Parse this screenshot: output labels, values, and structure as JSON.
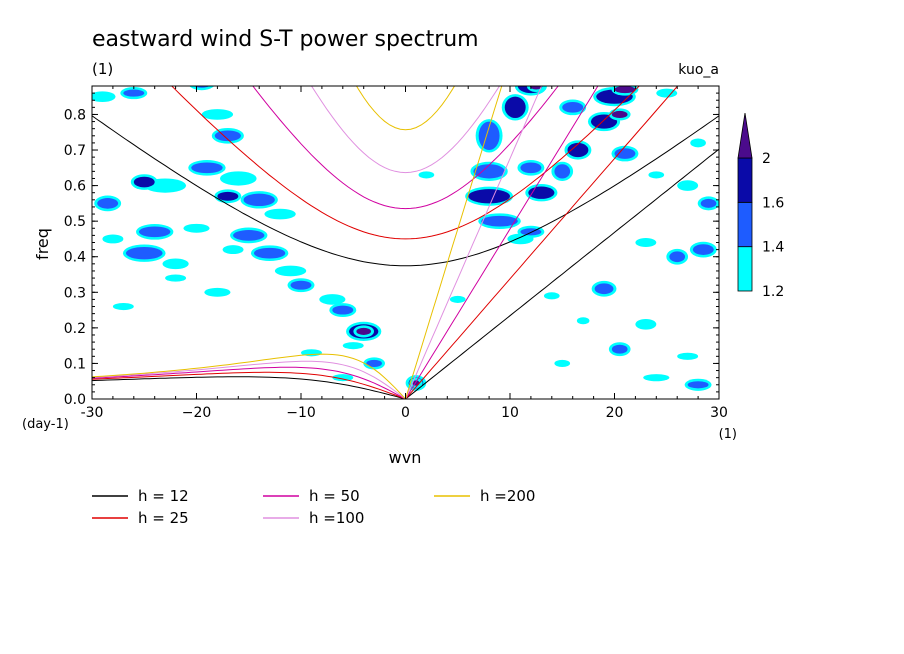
{
  "chart_data": {
    "type": "heatmap",
    "title": "eastward wind S-T power spectrum",
    "subtitle": "(1)",
    "tag": "kuo_a",
    "xlabel": "wvn",
    "ylabel": "freq",
    "x_unit": "(1)",
    "y_unit": "(day-1)",
    "xlim": [
      -30,
      30
    ],
    "ylim": [
      0,
      0.88
    ],
    "x_ticks": [
      -30,
      -20,
      -10,
      0,
      10,
      20,
      30
    ],
    "x_tick_labels": [
      "-30",
      "−20",
      "−10",
      "0",
      "10",
      "20",
      "30"
    ],
    "y_ticks": [
      0.0,
      0.1,
      0.2,
      0.3,
      0.4,
      0.5,
      0.6,
      0.7,
      0.8
    ],
    "y_tick_labels": [
      "0.0",
      "0.1",
      "0.2",
      "0.3",
      "0.4",
      "0.5",
      "0.6",
      "0.7",
      "0.8"
    ],
    "colorbar": {
      "levels": [
        1.2,
        1.4,
        1.6,
        2
      ],
      "labels": [
        "1.2",
        "1.4",
        "1.6",
        "2"
      ],
      "colors": [
        "#00ffff",
        "#1e5cff",
        "#0a0aa8",
        "#4b0b8c"
      ]
    },
    "contour_blobs": [
      {
        "x": -29,
        "y": 0.85,
        "w": 2.5,
        "h": 0.03,
        "level": 0
      },
      {
        "x": -26,
        "y": 0.86,
        "w": 2.0,
        "h": 0.02,
        "level": 1
      },
      {
        "x": -19.5,
        "y": 0.9,
        "w": 2.5,
        "h": 0.05,
        "level": 1
      },
      {
        "x": -23,
        "y": 0.6,
        "w": 4.0,
        "h": 0.04,
        "level": 0
      },
      {
        "x": -25,
        "y": 0.61,
        "w": 2.0,
        "h": 0.03,
        "level": 2
      },
      {
        "x": -18,
        "y": 0.8,
        "w": 3.0,
        "h": 0.03,
        "level": 0
      },
      {
        "x": -17,
        "y": 0.74,
        "w": 2.5,
        "h": 0.03,
        "level": 1
      },
      {
        "x": -19,
        "y": 0.65,
        "w": 3.0,
        "h": 0.03,
        "level": 1
      },
      {
        "x": -16,
        "y": 0.62,
        "w": 3.5,
        "h": 0.04,
        "level": 0
      },
      {
        "x": -17,
        "y": 0.57,
        "w": 2.0,
        "h": 0.025,
        "level": 2
      },
      {
        "x": -14,
        "y": 0.56,
        "w": 3.0,
        "h": 0.035,
        "level": 1
      },
      {
        "x": -12,
        "y": 0.52,
        "w": 3.0,
        "h": 0.03,
        "level": 0
      },
      {
        "x": -28.5,
        "y": 0.55,
        "w": 2.0,
        "h": 0.03,
        "level": 1
      },
      {
        "x": -28,
        "y": 0.45,
        "w": 2.0,
        "h": 0.025,
        "level": 0
      },
      {
        "x": -24,
        "y": 0.47,
        "w": 3.0,
        "h": 0.03,
        "level": 1
      },
      {
        "x": -20,
        "y": 0.48,
        "w": 2.5,
        "h": 0.025,
        "level": 0
      },
      {
        "x": -15,
        "y": 0.46,
        "w": 3.0,
        "h": 0.03,
        "level": 1
      },
      {
        "x": -16.5,
        "y": 0.42,
        "w": 2.0,
        "h": 0.025,
        "level": 0
      },
      {
        "x": -25,
        "y": 0.41,
        "w": 3.5,
        "h": 0.035,
        "level": 1
      },
      {
        "x": -22,
        "y": 0.38,
        "w": 2.5,
        "h": 0.03,
        "level": 0
      },
      {
        "x": -13,
        "y": 0.41,
        "w": 3.0,
        "h": 0.03,
        "level": 1
      },
      {
        "x": -11,
        "y": 0.36,
        "w": 3.0,
        "h": 0.03,
        "level": 0
      },
      {
        "x": -10,
        "y": 0.32,
        "w": 2.0,
        "h": 0.025,
        "level": 1
      },
      {
        "x": -22,
        "y": 0.34,
        "w": 2.0,
        "h": 0.02,
        "level": 0
      },
      {
        "x": -18,
        "y": 0.3,
        "w": 2.5,
        "h": 0.025,
        "level": 0
      },
      {
        "x": -27,
        "y": 0.26,
        "w": 2.0,
        "h": 0.02,
        "level": 0
      },
      {
        "x": -7,
        "y": 0.28,
        "w": 2.5,
        "h": 0.03,
        "level": 0
      },
      {
        "x": -6,
        "y": 0.25,
        "w": 2.0,
        "h": 0.025,
        "level": 1
      },
      {
        "x": -4,
        "y": 0.19,
        "w": 2.8,
        "h": 0.04,
        "level": 2
      },
      {
        "x": -4,
        "y": 0.19,
        "w": 1.4,
        "h": 0.02,
        "level": 3
      },
      {
        "x": -5,
        "y": 0.15,
        "w": 2.0,
        "h": 0.02,
        "level": 0
      },
      {
        "x": -3,
        "y": 0.1,
        "w": 1.5,
        "h": 0.02,
        "level": 1
      },
      {
        "x": -9,
        "y": 0.13,
        "w": 2.0,
        "h": 0.02,
        "level": 0
      },
      {
        "x": 1,
        "y": 0.045,
        "w": 1.4,
        "h": 0.03,
        "level": 2
      },
      {
        "x": 1,
        "y": 0.045,
        "w": 0.7,
        "h": 0.015,
        "level": 3
      },
      {
        "x": -6,
        "y": 0.06,
        "w": 2.0,
        "h": 0.02,
        "level": 0
      },
      {
        "x": 8,
        "y": 0.74,
        "w": 2.0,
        "h": 0.08,
        "level": 1
      },
      {
        "x": 10.5,
        "y": 0.82,
        "w": 2.0,
        "h": 0.06,
        "level": 2
      },
      {
        "x": 12,
        "y": 0.88,
        "w": 2.5,
        "h": 0.04,
        "level": 2
      },
      {
        "x": 12.5,
        "y": 0.88,
        "w": 1.2,
        "h": 0.02,
        "level": 3
      },
      {
        "x": 8,
        "y": 0.64,
        "w": 3.0,
        "h": 0.04,
        "level": 1
      },
      {
        "x": 8,
        "y": 0.57,
        "w": 4.0,
        "h": 0.04,
        "level": 2
      },
      {
        "x": 12,
        "y": 0.65,
        "w": 2.0,
        "h": 0.03,
        "level": 1
      },
      {
        "x": 13,
        "y": 0.58,
        "w": 2.5,
        "h": 0.035,
        "level": 2
      },
      {
        "x": 9,
        "y": 0.5,
        "w": 3.5,
        "h": 0.03,
        "level": 1
      },
      {
        "x": 11,
        "y": 0.45,
        "w": 2.5,
        "h": 0.03,
        "level": 0
      },
      {
        "x": 12,
        "y": 0.47,
        "w": 2.0,
        "h": 0.02,
        "level": 1
      },
      {
        "x": 15,
        "y": 0.64,
        "w": 1.5,
        "h": 0.04,
        "level": 1
      },
      {
        "x": 16.5,
        "y": 0.7,
        "w": 2.0,
        "h": 0.04,
        "level": 2
      },
      {
        "x": 19,
        "y": 0.78,
        "w": 2.5,
        "h": 0.04,
        "level": 2
      },
      {
        "x": 20,
        "y": 0.85,
        "w": 3.5,
        "h": 0.04,
        "level": 2
      },
      {
        "x": 21,
        "y": 0.87,
        "w": 2.0,
        "h": 0.02,
        "level": 3
      },
      {
        "x": 20.5,
        "y": 0.8,
        "w": 1.5,
        "h": 0.02,
        "level": 3
      },
      {
        "x": 16,
        "y": 0.82,
        "w": 2.0,
        "h": 0.03,
        "level": 1
      },
      {
        "x": 21,
        "y": 0.69,
        "w": 2.0,
        "h": 0.03,
        "level": 1
      },
      {
        "x": 25,
        "y": 0.86,
        "w": 2.0,
        "h": 0.025,
        "level": 0
      },
      {
        "x": 19,
        "y": 0.31,
        "w": 1.8,
        "h": 0.03,
        "level": 1
      },
      {
        "x": 23,
        "y": 0.44,
        "w": 2.0,
        "h": 0.025,
        "level": 0
      },
      {
        "x": 26,
        "y": 0.4,
        "w": 1.5,
        "h": 0.03,
        "level": 1
      },
      {
        "x": 28.5,
        "y": 0.42,
        "w": 2.0,
        "h": 0.03,
        "level": 1
      },
      {
        "x": 27,
        "y": 0.6,
        "w": 2.0,
        "h": 0.03,
        "level": 0
      },
      {
        "x": 29,
        "y": 0.55,
        "w": 1.5,
        "h": 0.025,
        "level": 1
      },
      {
        "x": 24,
        "y": 0.63,
        "w": 1.5,
        "h": 0.02,
        "level": 0
      },
      {
        "x": 14,
        "y": 0.29,
        "w": 1.5,
        "h": 0.02,
        "level": 0
      },
      {
        "x": 23,
        "y": 0.21,
        "w": 2.0,
        "h": 0.03,
        "level": 0
      },
      {
        "x": 20.5,
        "y": 0.14,
        "w": 1.5,
        "h": 0.025,
        "level": 1
      },
      {
        "x": 27,
        "y": 0.12,
        "w": 2.0,
        "h": 0.02,
        "level": 0
      },
      {
        "x": 28,
        "y": 0.04,
        "w": 2.0,
        "h": 0.02,
        "level": 1
      },
      {
        "x": 24,
        "y": 0.06,
        "w": 2.5,
        "h": 0.02,
        "level": 0
      },
      {
        "x": 15,
        "y": 0.1,
        "w": 1.5,
        "h": 0.02,
        "level": 0
      },
      {
        "x": 17,
        "y": 0.22,
        "w": 1.2,
        "h": 0.02,
        "level": 0
      },
      {
        "x": 5,
        "y": 0.28,
        "w": 1.5,
        "h": 0.02,
        "level": 0
      },
      {
        "x": 2,
        "y": 0.63,
        "w": 1.5,
        "h": 0.02,
        "level": 0
      },
      {
        "x": 28,
        "y": 0.72,
        "w": 1.5,
        "h": 0.025,
        "level": 0
      }
    ],
    "dispersion_curves": [
      {
        "name": "h = 12",
        "h": 12,
        "color": "#000000"
      },
      {
        "name": "h = 25",
        "h": 25,
        "color": "#e00000"
      },
      {
        "name": "h = 50",
        "h": 50,
        "color": "#d000a0"
      },
      {
        "name": "h =100",
        "h": 100,
        "color": "#e090e0"
      },
      {
        "name": "h =200",
        "h": 200,
        "color": "#e8c000"
      }
    ]
  }
}
